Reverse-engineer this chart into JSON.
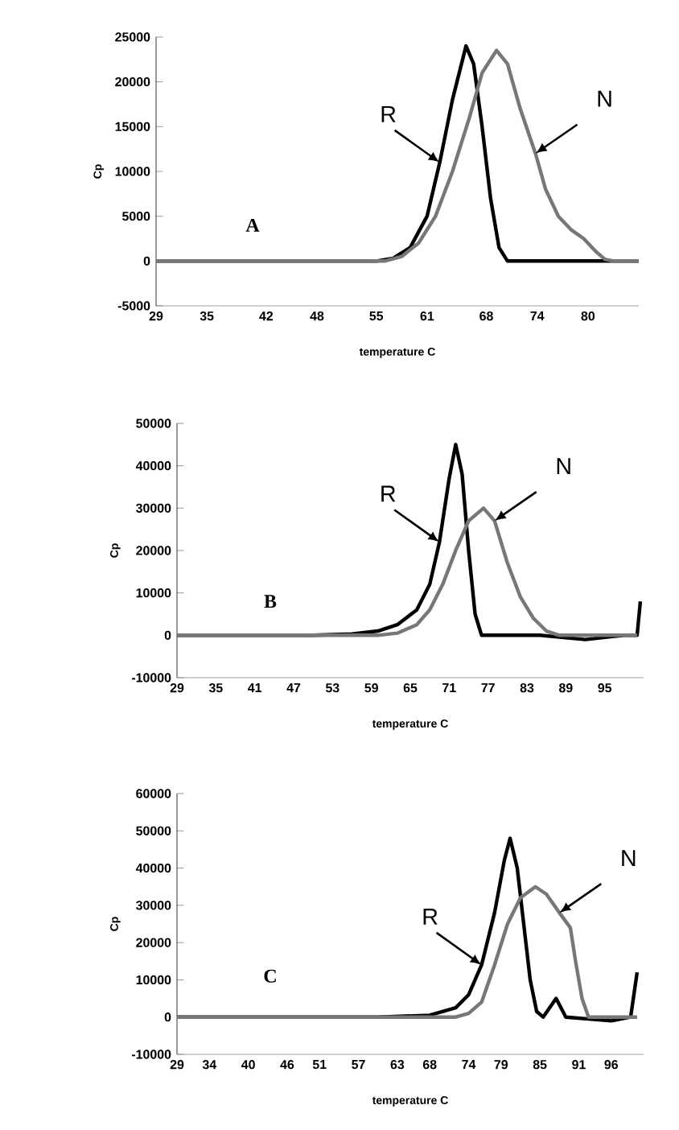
{
  "chart_data": [
    {
      "type": "line",
      "xlabel": "temperature C",
      "ylabel": "Cp",
      "xlim": [
        29,
        86
      ],
      "ylim": [
        -5000,
        25000
      ],
      "xticks": [
        29,
        35,
        42,
        48,
        55,
        61,
        68,
        74,
        80
      ],
      "yticks": [
        -5000,
        0,
        5000,
        10000,
        15000,
        20000,
        25000
      ],
      "grid": false,
      "marker": "none",
      "line_style": "solid",
      "annotations": [
        "A",
        {
          "text": "R",
          "x": 62.5,
          "y": 11000
        },
        {
          "text": "N",
          "x": 73.8,
          "y": 12000
        }
      ],
      "series": [
        {
          "color": "#000000",
          "x": [
            29,
            50,
            55,
            57,
            59,
            61,
            62.5,
            64,
            65.6,
            66.5,
            67.5,
            68.5,
            69.5,
            70.5,
            75,
            80,
            86
          ],
          "values": [
            0,
            0,
            0,
            300,
            1500,
            5000,
            11000,
            18000,
            24000,
            22000,
            15000,
            7000,
            1500,
            0,
            0,
            0,
            0
          ]
        },
        {
          "color": "#777777",
          "x": [
            29,
            56,
            58,
            60,
            62,
            64,
            66,
            67.5,
            69.2,
            70.5,
            72,
            73.8,
            75,
            76.5,
            78,
            79.5,
            81,
            82,
            83,
            86
          ],
          "values": [
            0,
            0,
            500,
            2000,
            5000,
            10000,
            16000,
            21000,
            23500,
            22000,
            17000,
            12000,
            8000,
            5000,
            3500,
            2500,
            1000,
            200,
            0,
            0
          ]
        }
      ]
    },
    {
      "type": "line",
      "xlabel": "temperature C",
      "ylabel": "Cp",
      "xlim": [
        29,
        101
      ],
      "ylim": [
        -10000,
        50000
      ],
      "xticks": [
        29,
        35,
        41,
        47,
        53,
        59,
        65,
        71,
        77,
        83,
        89,
        95
      ],
      "yticks": [
        -10000,
        0,
        10000,
        20000,
        30000,
        40000,
        50000
      ],
      "grid": false,
      "marker": "none",
      "line_style": "solid",
      "annotations": [
        "B",
        {
          "text": "R",
          "x": 69.5,
          "y": 22000
        },
        {
          "text": "N",
          "x": 78,
          "y": 27000
        }
      ],
      "series": [
        {
          "color": "#000000",
          "x": [
            29,
            50,
            56,
            60,
            63,
            66,
            68,
            69.5,
            71,
            72,
            73,
            74,
            75,
            76,
            85,
            92,
            98,
            100,
            100.5
          ],
          "values": [
            0,
            0,
            300,
            1000,
            2500,
            6000,
            12000,
            22000,
            37000,
            45000,
            38000,
            20000,
            5000,
            0,
            0,
            -1000,
            0,
            0,
            8000
          ]
        },
        {
          "color": "#777777",
          "x": [
            29,
            60,
            63,
            66,
            68,
            70,
            72,
            74,
            76.3,
            78,
            80,
            82,
            84,
            86,
            88,
            100
          ],
          "values": [
            0,
            0,
            500,
            2500,
            6000,
            12000,
            20000,
            27000,
            30000,
            27000,
            17000,
            9000,
            4000,
            1000,
            0,
            0
          ]
        }
      ]
    },
    {
      "type": "line",
      "xlabel": "temperature C",
      "ylabel": "Cp",
      "xlim": [
        29,
        101
      ],
      "ylim": [
        -10000,
        60000
      ],
      "xticks": [
        29,
        34,
        40,
        46,
        51,
        57,
        63,
        68,
        74,
        79,
        85,
        91,
        96
      ],
      "yticks": [
        -10000,
        0,
        10000,
        20000,
        30000,
        40000,
        50000,
        60000
      ],
      "grid": false,
      "marker": "none",
      "line_style": "solid",
      "annotations": [
        "C",
        {
          "text": "R",
          "x": 76,
          "y": 14000
        },
        {
          "text": "N",
          "x": 88,
          "y": 28000
        }
      ],
      "series": [
        {
          "color": "#000000",
          "x": [
            29,
            60,
            68,
            72,
            74,
            76,
            78,
            79.5,
            80.4,
            81.5,
            82.5,
            83.5,
            84.5,
            85.5,
            87.5,
            89,
            96,
            99,
            100
          ],
          "values": [
            0,
            0,
            500,
            2500,
            6000,
            14000,
            28000,
            42000,
            48000,
            40000,
            25000,
            10000,
            1500,
            0,
            5000,
            0,
            -1000,
            0,
            12000
          ]
        },
        {
          "color": "#777777",
          "x": [
            29,
            72,
            74,
            76,
            78,
            80,
            82,
            84.3,
            86,
            88,
            89.7,
            90.5,
            91.5,
            92.5,
            100
          ],
          "values": [
            0,
            0,
            1000,
            4000,
            14000,
            25000,
            32000,
            35000,
            33000,
            28000,
            24000,
            15000,
            5000,
            0,
            0
          ]
        }
      ]
    }
  ]
}
